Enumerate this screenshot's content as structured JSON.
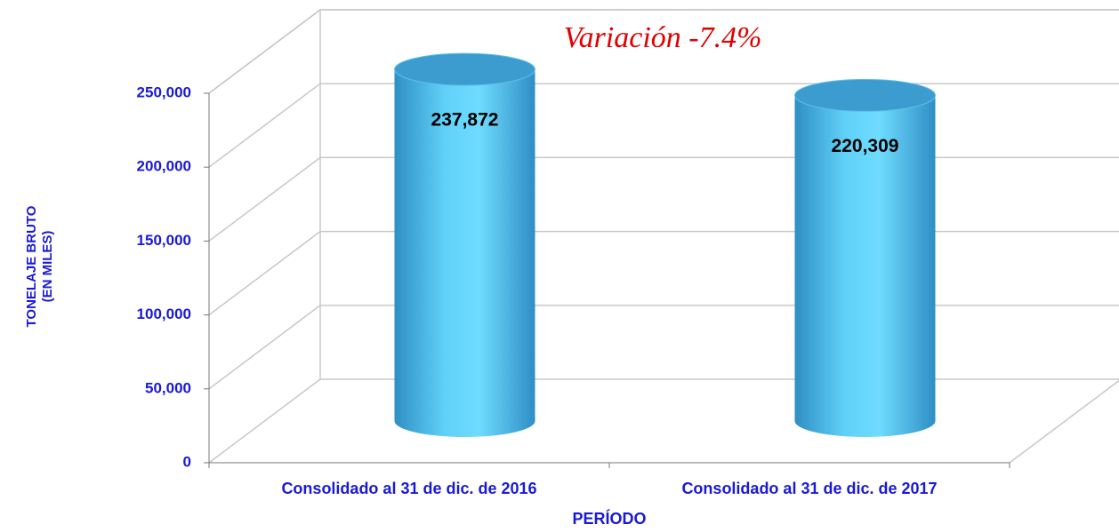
{
  "chart_data": {
    "type": "bar3d",
    "annotation": "Variación  -7.4%",
    "ylabel": [
      "TONELAJE BRUTO",
      "(EN MILES)"
    ],
    "xlabel": "PERÍODO",
    "categories": [
      "Consolidado al 31 de dic. de 2016",
      "Consolidado al 31 de dic. de 2017"
    ],
    "values": [
      237872,
      220309
    ],
    "value_labels": [
      "237,872",
      "220,309"
    ],
    "color": "#4fc3ee",
    "ylim": [
      0,
      250000
    ],
    "yticks": [
      0,
      {
        "value": 50000,
        "label": "50,000"
      },
      {
        "value": 100000,
        "label": "100,000"
      },
      {
        "value": 150000,
        "label": "150,000"
      },
      {
        "value": 200000,
        "label": "200,000"
      },
      {
        "value": 250000,
        "label": "250,000"
      }
    ],
    "grid": true
  }
}
